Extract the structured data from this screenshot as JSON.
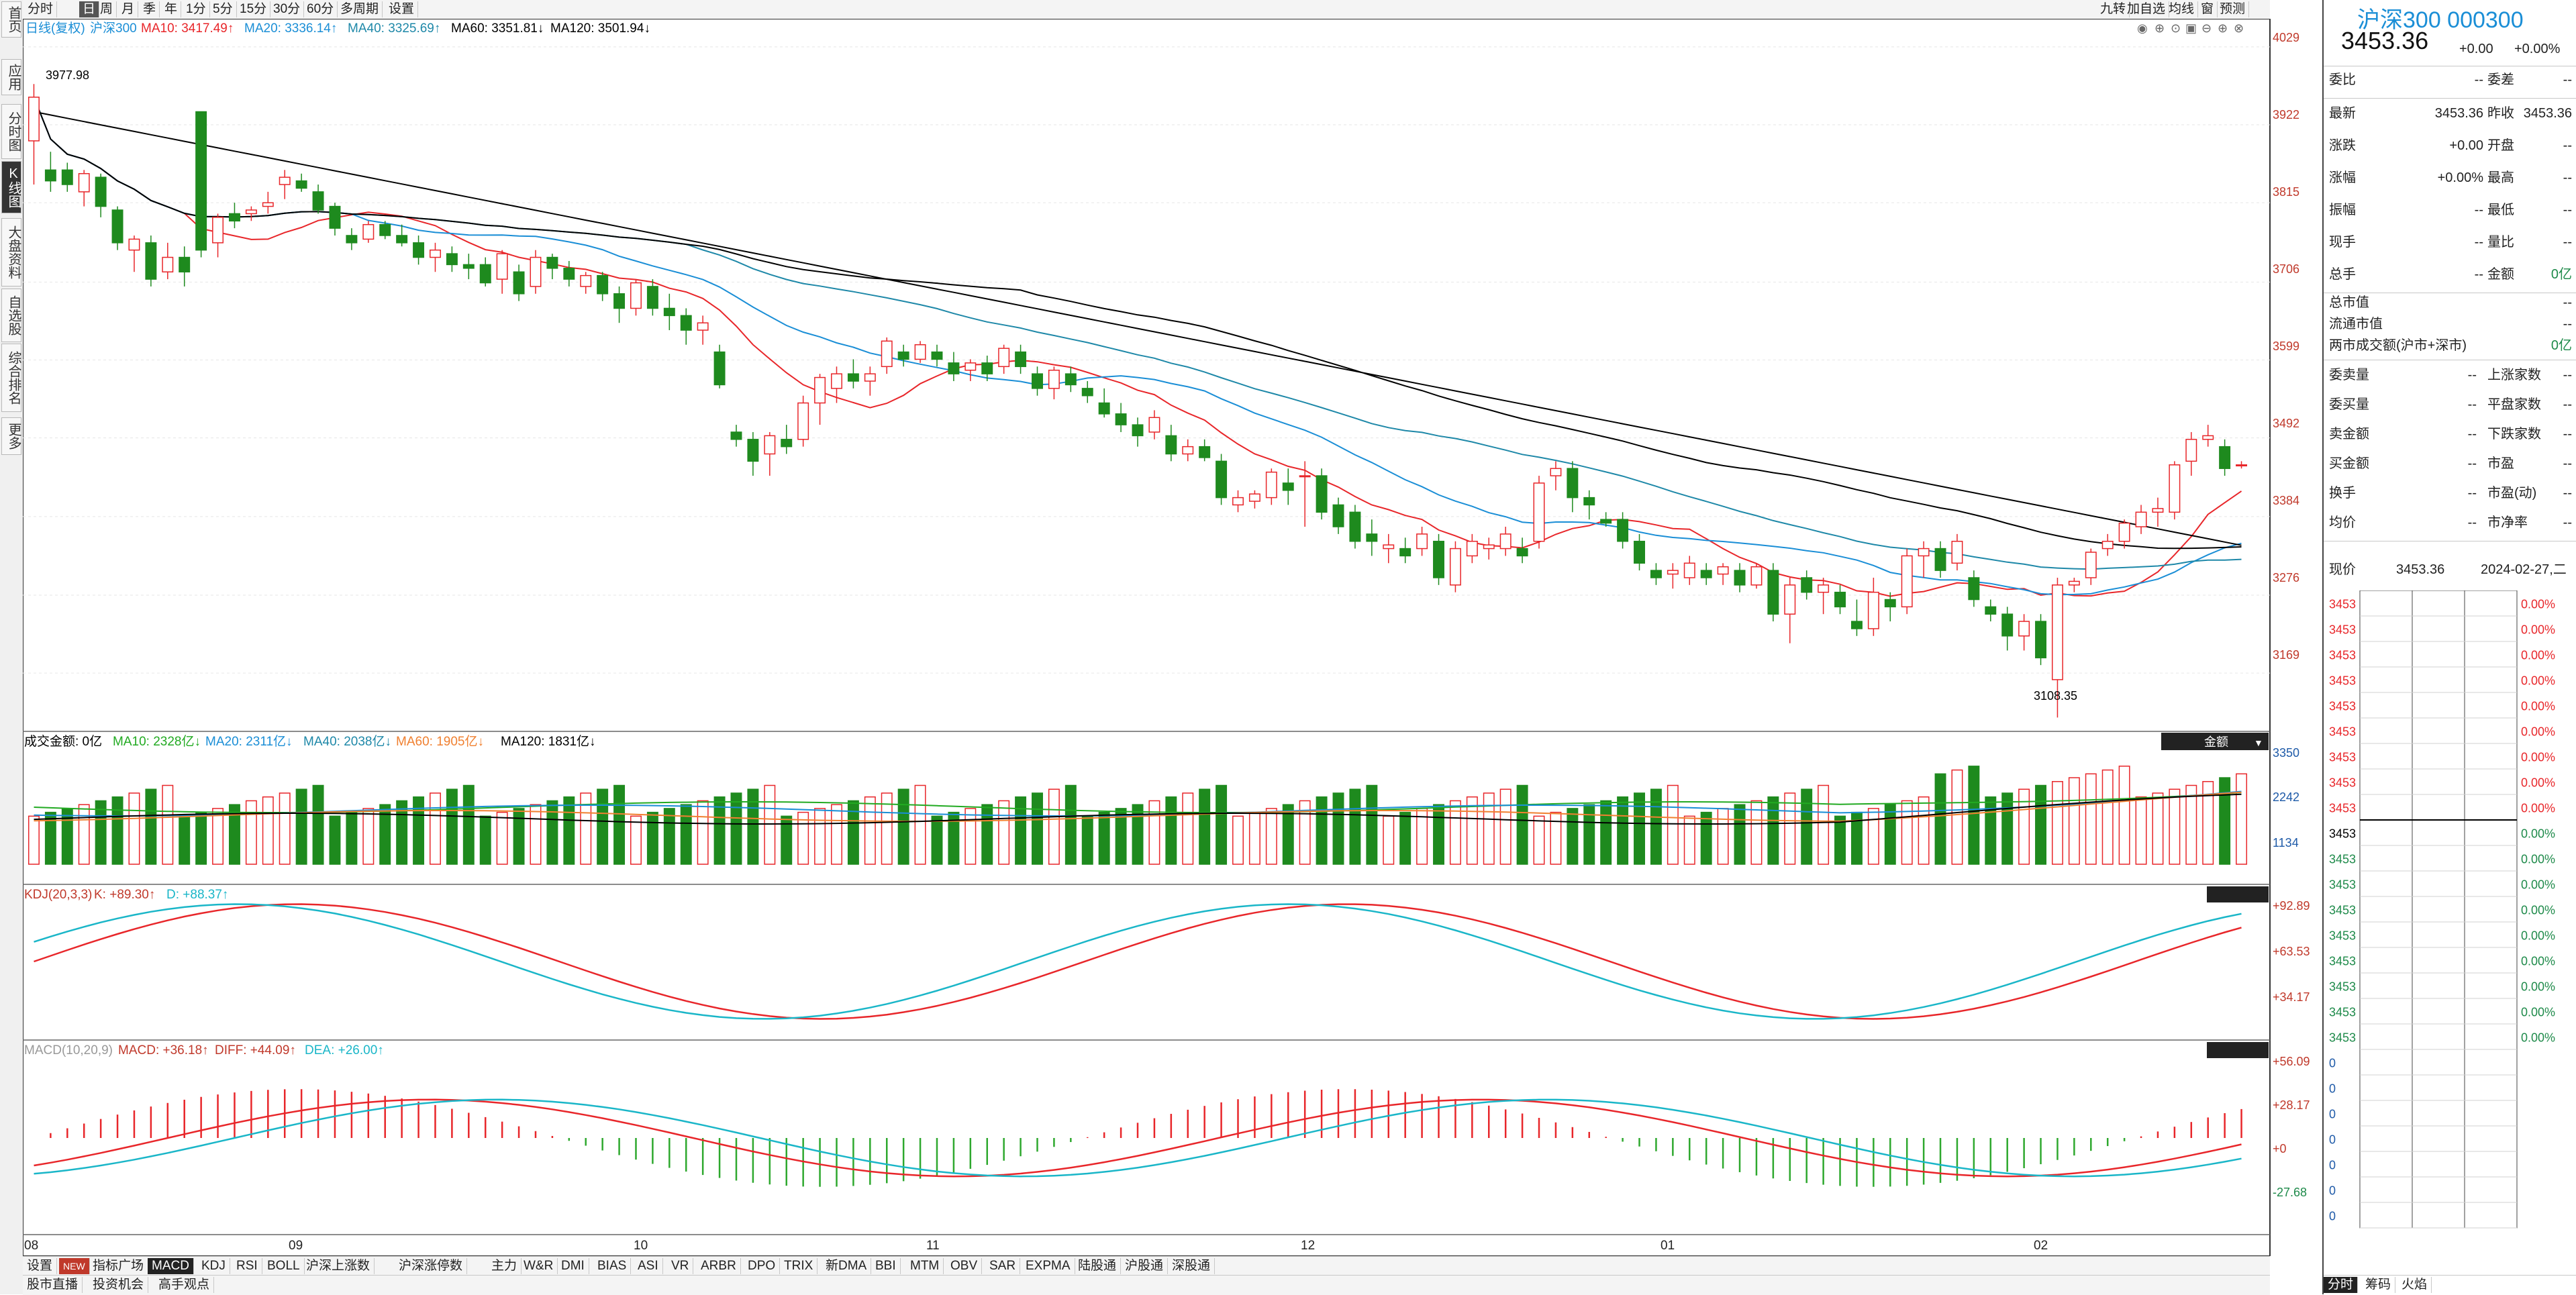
{
  "left_nav": [
    "首页",
    "应用",
    "分时图",
    "K线图",
    "大盘资料",
    "自选股",
    "综合排名",
    "更多"
  ],
  "toolbar": {
    "items": [
      "分时",
      "日",
      "周",
      "月",
      "季",
      "年",
      "1分",
      "5分",
      "15分",
      "30分",
      "60分",
      "多周期",
      "设置"
    ],
    "active": "日",
    "right_items": [
      "九转",
      "加自选",
      "均线",
      "窗",
      "预测"
    ]
  },
  "main_legend": {
    "type": "日线(复权)",
    "name": "沪深300",
    "ma": [
      {
        "label": "MA10: 3417.49↑",
        "color": "#e8262a"
      },
      {
        "label": "MA20: 3336.14↑",
        "color": "#1a8ed6"
      },
      {
        "label": "MA40: 3325.69↑",
        "color": "#1e88a8"
      },
      {
        "label": "MA60: 3351.81↓",
        "color": "#000000"
      },
      {
        "label": "MA120: 3501.94↓",
        "color": "#000000"
      }
    ]
  },
  "price_axis": [
    "4029",
    "3922",
    "3815",
    "3706",
    "3599",
    "3492",
    "3384",
    "3276",
    "3169"
  ],
  "annotations": {
    "high": "3977.98",
    "low": "3108.35"
  },
  "volume_legend": {
    "title": "成交金额: 0亿",
    "ma": [
      {
        "label": "MA10: 2328亿↓",
        "color": "#22aa22"
      },
      {
        "label": "MA20: 2311亿↓",
        "color": "#1a8ed6"
      },
      {
        "label": "MA40: 2038亿↓",
        "color": "#1e88a8"
      },
      {
        "label": "MA60: 1905亿↓",
        "color": "#f08030"
      },
      {
        "label": "MA120: 1831亿↓",
        "color": "#000000"
      }
    ],
    "badge": "金额",
    "axis": [
      "3350",
      "2242",
      "1134"
    ]
  },
  "kdj_legend": {
    "title": "KDJ(20,3,3)",
    "k": "K: +89.30↑",
    "d": "D: +88.37↑",
    "axis": [
      "+92.89",
      "+63.53",
      "+34.17"
    ]
  },
  "macd_legend": {
    "title": "MACD(10,20,9)",
    "macd": "MACD: +36.18↑",
    "diff": "DIFF: +44.09↑",
    "dea": "DEA: +26.00↑",
    "axis": [
      "+56.09",
      "+28.17",
      "+0",
      "-27.68"
    ]
  },
  "x_axis": [
    "08",
    "09",
    "10",
    "11",
    "12",
    "01",
    "02"
  ],
  "bottom_tabs": [
    "设置",
    "NEW",
    "指标广场",
    "MACD",
    "KDJ",
    "RSI",
    "BOLL",
    "沪深上涨数",
    "沪深涨停数",
    "主力",
    "W&R",
    "DMI",
    "BIAS",
    "ASI",
    "VR",
    "ARBR",
    "DPO",
    "TRIX",
    "新DMA",
    "BBI",
    "MTM",
    "OBV",
    "SAR",
    "EXPMA",
    "陆股通",
    "沪股通",
    "深股通"
  ],
  "bottom_tabs_active": "MACD",
  "bottom_tabs2": [
    "股市直播",
    "投资机会",
    "高手观点"
  ],
  "right_panel": {
    "title": "沪深300 000300",
    "price": "3453.36",
    "change": "+0.00",
    "change_pct": "+0.00%",
    "weibi": {
      "label": "委比",
      "value": "--",
      "label2": "委差",
      "value2": "--"
    },
    "rows": [
      {
        "l1": "最新",
        "v1": "3453.36",
        "l2": "昨收",
        "v2": "3453.36"
      },
      {
        "l1": "涨跌",
        "v1": "+0.00",
        "l2": "开盘",
        "v2": "--"
      },
      {
        "l1": "涨幅",
        "v1": "+0.00%",
        "l2": "最高",
        "v2": "--"
      },
      {
        "l1": "振幅",
        "v1": "--",
        "l2": "最低",
        "v2": "--"
      },
      {
        "l1": "现手",
        "v1": "--",
        "l2": "量比",
        "v2": "--"
      },
      {
        "l1": "总手",
        "v1": "--",
        "l2": "金额",
        "v2": "0亿"
      }
    ],
    "mkt": [
      {
        "l": "总市值",
        "v": "--"
      },
      {
        "l": "流通市值",
        "v": "--"
      },
      {
        "l": "两市成交额(沪市+深市)",
        "v": "0亿"
      }
    ],
    "stats": [
      {
        "l1": "委卖量",
        "v1": "--",
        "l2": "上涨家数",
        "v2": "--"
      },
      {
        "l1": "委买量",
        "v1": "--",
        "l2": "平盘家数",
        "v2": "--"
      },
      {
        "l1": "卖金额",
        "v1": "--",
        "l2": "下跌家数",
        "v2": "--"
      },
      {
        "l1": "买金额",
        "v1": "--",
        "l2": "市盈",
        "v2": "--"
      },
      {
        "l1": "换手",
        "v1": "--",
        "l2": "市盈(动)",
        "v2": "--"
      },
      {
        "l1": "均价",
        "v1": "--",
        "l2": "市净率",
        "v2": "--"
      }
    ],
    "now": {
      "label": "现价",
      "value": "3453.36",
      "date": "2024-02-27,二"
    },
    "mini_left": [
      "3453",
      "3453",
      "3453",
      "3453",
      "3453",
      "3453",
      "3453",
      "3453",
      "3453",
      "3453",
      "3453",
      "3453",
      "3453",
      "3453",
      "3453",
      "3453",
      "3453",
      "3453",
      "0",
      "0",
      "0",
      "0",
      "0",
      "0",
      "0"
    ],
    "mini_right": [
      "0.00%",
      "0.00%",
      "0.00%",
      "0.00%",
      "0.00%",
      "0.00%",
      "0.00%",
      "0.00%",
      "0.00%",
      "0.00%",
      "0.00%",
      "0.00%",
      "0.00%",
      "0.00%",
      "0.00%",
      "0.00%",
      "0.00%",
      "0.00%"
    ],
    "bottom_tabs": [
      "分时",
      "筹码",
      "火焰"
    ]
  },
  "chart_data": {
    "type": "candlestick",
    "candles": [
      [
        3900,
        3978,
        3840,
        3960
      ],
      [
        3860,
        3885,
        3830,
        3845
      ],
      [
        3860,
        3870,
        3830,
        3840
      ],
      [
        3830,
        3860,
        3810,
        3855
      ],
      [
        3850,
        3855,
        3795,
        3810
      ],
      [
        3805,
        3810,
        3750,
        3760
      ],
      [
        3750,
        3770,
        3720,
        3765
      ],
      [
        3760,
        3770,
        3700,
        3710
      ],
      [
        3720,
        3760,
        3710,
        3740
      ],
      [
        3740,
        3755,
        3700,
        3720
      ],
      [
        3940,
        3940,
        3740,
        3750
      ],
      [
        3760,
        3800,
        3740,
        3795
      ],
      [
        3800,
        3815,
        3780,
        3790
      ],
      [
        3800,
        3810,
        3790,
        3805
      ],
      [
        3810,
        3830,
        3800,
        3815
      ],
      [
        3840,
        3860,
        3820,
        3850
      ],
      [
        3845,
        3855,
        3830,
        3835
      ],
      [
        3830,
        3840,
        3800,
        3805
      ],
      [
        3810,
        3815,
        3770,
        3780
      ],
      [
        3770,
        3780,
        3750,
        3760
      ],
      [
        3765,
        3790,
        3760,
        3785
      ],
      [
        3785,
        3790,
        3765,
        3770
      ],
      [
        3770,
        3785,
        3755,
        3760
      ],
      [
        3760,
        3770,
        3730,
        3740
      ],
      [
        3740,
        3760,
        3720,
        3750
      ],
      [
        3745,
        3755,
        3720,
        3730
      ],
      [
        3730,
        3745,
        3710,
        3725
      ],
      [
        3730,
        3740,
        3700,
        3705
      ],
      [
        3710,
        3750,
        3690,
        3745
      ],
      [
        3720,
        3730,
        3680,
        3690
      ],
      [
        3700,
        3750,
        3690,
        3740
      ],
      [
        3740,
        3745,
        3710,
        3725
      ],
      [
        3725,
        3735,
        3700,
        3710
      ],
      [
        3700,
        3720,
        3690,
        3715
      ],
      [
        3715,
        3720,
        3680,
        3690
      ],
      [
        3690,
        3700,
        3650,
        3670
      ],
      [
        3670,
        3710,
        3660,
        3705
      ],
      [
        3700,
        3710,
        3660,
        3670
      ],
      [
        3670,
        3690,
        3640,
        3660
      ],
      [
        3660,
        3670,
        3620,
        3640
      ],
      [
        3640,
        3660,
        3620,
        3650
      ],
      [
        3610,
        3620,
        3560,
        3565
      ],
      [
        3500,
        3510,
        3480,
        3490
      ],
      [
        3490,
        3500,
        3440,
        3460
      ],
      [
        3470,
        3500,
        3440,
        3495
      ],
      [
        3490,
        3510,
        3470,
        3480
      ],
      [
        3490,
        3550,
        3480,
        3540
      ],
      [
        3540,
        3580,
        3510,
        3575
      ],
      [
        3560,
        3590,
        3540,
        3580
      ],
      [
        3580,
        3600,
        3560,
        3570
      ],
      [
        3570,
        3590,
        3550,
        3580
      ],
      [
        3590,
        3630,
        3580,
        3625
      ],
      [
        3610,
        3620,
        3590,
        3600
      ],
      [
        3600,
        3625,
        3595,
        3620
      ],
      [
        3610,
        3620,
        3590,
        3600
      ],
      [
        3595,
        3610,
        3570,
        3580
      ],
      [
        3585,
        3600,
        3570,
        3595
      ],
      [
        3595,
        3605,
        3570,
        3580
      ],
      [
        3590,
        3620,
        3580,
        3615
      ],
      [
        3610,
        3620,
        3580,
        3590
      ],
      [
        3580,
        3590,
        3550,
        3560
      ],
      [
        3560,
        3590,
        3545,
        3585
      ],
      [
        3580,
        3590,
        3555,
        3565
      ],
      [
        3560,
        3570,
        3540,
        3550
      ],
      [
        3540,
        3560,
        3520,
        3525
      ],
      [
        3525,
        3540,
        3500,
        3510
      ],
      [
        3510,
        3520,
        3480,
        3495
      ],
      [
        3500,
        3530,
        3490,
        3520
      ],
      [
        3495,
        3510,
        3460,
        3470
      ],
      [
        3470,
        3490,
        3460,
        3480
      ],
      [
        3480,
        3490,
        3460,
        3465
      ],
      [
        3460,
        3470,
        3400,
        3410
      ],
      [
        3400,
        3420,
        3390,
        3410
      ],
      [
        3405,
        3420,
        3395,
        3415
      ],
      [
        3410,
        3450,
        3400,
        3445
      ],
      [
        3430,
        3450,
        3400,
        3420
      ],
      [
        3440,
        3460,
        3370,
        3440
      ],
      [
        3440,
        3450,
        3380,
        3390
      ],
      [
        3400,
        3410,
        3360,
        3370
      ],
      [
        3390,
        3400,
        3340,
        3350
      ],
      [
        3360,
        3380,
        3330,
        3350
      ],
      [
        3340,
        3360,
        3320,
        3345
      ],
      [
        3340,
        3355,
        3320,
        3330
      ],
      [
        3340,
        3370,
        3330,
        3360
      ],
      [
        3350,
        3360,
        3290,
        3300
      ],
      [
        3290,
        3350,
        3280,
        3340
      ],
      [
        3330,
        3360,
        3320,
        3350
      ],
      [
        3340,
        3355,
        3325,
        3345
      ],
      [
        3340,
        3370,
        3330,
        3360
      ],
      [
        3340,
        3355,
        3320,
        3330
      ],
      [
        3350,
        3440,
        3340,
        3430
      ],
      [
        3440,
        3460,
        3420,
        3450
      ],
      [
        3450,
        3460,
        3390,
        3410
      ],
      [
        3410,
        3420,
        3380,
        3400
      ],
      [
        3380,
        3390,
        3370,
        3375
      ],
      [
        3380,
        3390,
        3340,
        3350
      ],
      [
        3350,
        3360,
        3310,
        3320
      ],
      [
        3310,
        3320,
        3290,
        3300
      ],
      [
        3305,
        3320,
        3285,
        3310
      ],
      [
        3300,
        3330,
        3290,
        3320
      ],
      [
        3310,
        3320,
        3290,
        3300
      ],
      [
        3305,
        3320,
        3290,
        3315
      ],
      [
        3310,
        3320,
        3280,
        3290
      ],
      [
        3290,
        3320,
        3285,
        3315
      ],
      [
        3310,
        3320,
        3240,
        3250
      ],
      [
        3250,
        3300,
        3210,
        3290
      ],
      [
        3300,
        3310,
        3270,
        3280
      ],
      [
        3280,
        3300,
        3250,
        3290
      ],
      [
        3280,
        3290,
        3250,
        3260
      ],
      [
        3240,
        3270,
        3220,
        3230
      ],
      [
        3230,
        3300,
        3220,
        3280
      ],
      [
        3270,
        3280,
        3240,
        3260
      ],
      [
        3260,
        3340,
        3250,
        3330
      ],
      [
        3330,
        3350,
        3300,
        3340
      ],
      [
        3340,
        3350,
        3300,
        3310
      ],
      [
        3320,
        3360,
        3310,
        3350
      ],
      [
        3300,
        3310,
        3260,
        3270
      ],
      [
        3260,
        3270,
        3240,
        3250
      ],
      [
        3250,
        3260,
        3200,
        3220
      ],
      [
        3220,
        3250,
        3200,
        3240
      ],
      [
        3240,
        3250,
        3180,
        3190
      ],
      [
        3160,
        3300,
        3108,
        3290
      ],
      [
        3290,
        3300,
        3280,
        3295
      ],
      [
        3300,
        3340,
        3290,
        3335
      ],
      [
        3340,
        3360,
        3330,
        3350
      ],
      [
        3350,
        3380,
        3340,
        3375
      ],
      [
        3370,
        3400,
        3360,
        3390
      ],
      [
        3390,
        3410,
        3370,
        3395
      ],
      [
        3390,
        3460,
        3380,
        3455
      ],
      [
        3460,
        3500,
        3440,
        3490
      ],
      [
        3490,
        3510,
        3480,
        3495
      ],
      [
        3480,
        3490,
        3440,
        3450
      ],
      [
        3455,
        3460,
        3450,
        3455
      ]
    ],
    "y_range": [
      3100,
      4040
    ]
  }
}
